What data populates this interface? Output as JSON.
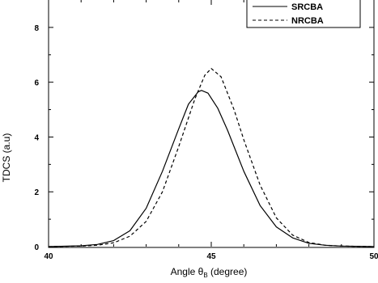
{
  "chart_data": {
    "type": "line",
    "title": "",
    "xlabel": "Angle θ",
    "xlabel_subscript": "B",
    "xlabel_unit": " (degree)",
    "ylabel": "TDCS (a.u)",
    "xlim": [
      40,
      50
    ],
    "ylim": [
      0,
      9
    ],
    "xticks": [
      40,
      45,
      50
    ],
    "xtick_labels": [
      "40",
      "45",
      "50"
    ],
    "yticks": [
      0,
      2,
      4,
      6,
      8
    ],
    "ytick_labels": [
      "0",
      "2",
      "4",
      "6",
      "8"
    ],
    "grid": false,
    "legend_position": "top-right",
    "series": [
      {
        "name": "SRCBA",
        "style": "solid",
        "color": "#000000",
        "x": [
          40.0,
          41.0,
          41.5,
          42.0,
          42.5,
          43.0,
          43.5,
          44.0,
          44.3,
          44.6,
          44.7,
          44.9,
          45.2,
          45.5,
          46.0,
          46.5,
          47.0,
          47.5,
          48.0,
          48.5,
          49.0,
          50.0
        ],
        "values": [
          0.0,
          0.03,
          0.08,
          0.22,
          0.58,
          1.4,
          2.75,
          4.3,
          5.2,
          5.65,
          5.7,
          5.6,
          5.05,
          4.25,
          2.75,
          1.5,
          0.72,
          0.32,
          0.12,
          0.05,
          0.02,
          0.0
        ]
      },
      {
        "name": "NRCBA",
        "style": "dashed",
        "color": "#000000",
        "x": [
          40.0,
          41.0,
          41.5,
          42.0,
          42.5,
          43.0,
          43.5,
          44.0,
          44.5,
          44.8,
          45.0,
          45.3,
          45.7,
          46.0,
          46.5,
          47.0,
          47.5,
          48.0,
          48.5,
          49.0,
          50.0
        ],
        "values": [
          0.0,
          0.02,
          0.05,
          0.14,
          0.38,
          0.92,
          2.0,
          3.65,
          5.4,
          6.25,
          6.5,
          6.2,
          5.0,
          3.9,
          2.25,
          1.05,
          0.42,
          0.15,
          0.05,
          0.02,
          0.0
        ]
      }
    ]
  }
}
